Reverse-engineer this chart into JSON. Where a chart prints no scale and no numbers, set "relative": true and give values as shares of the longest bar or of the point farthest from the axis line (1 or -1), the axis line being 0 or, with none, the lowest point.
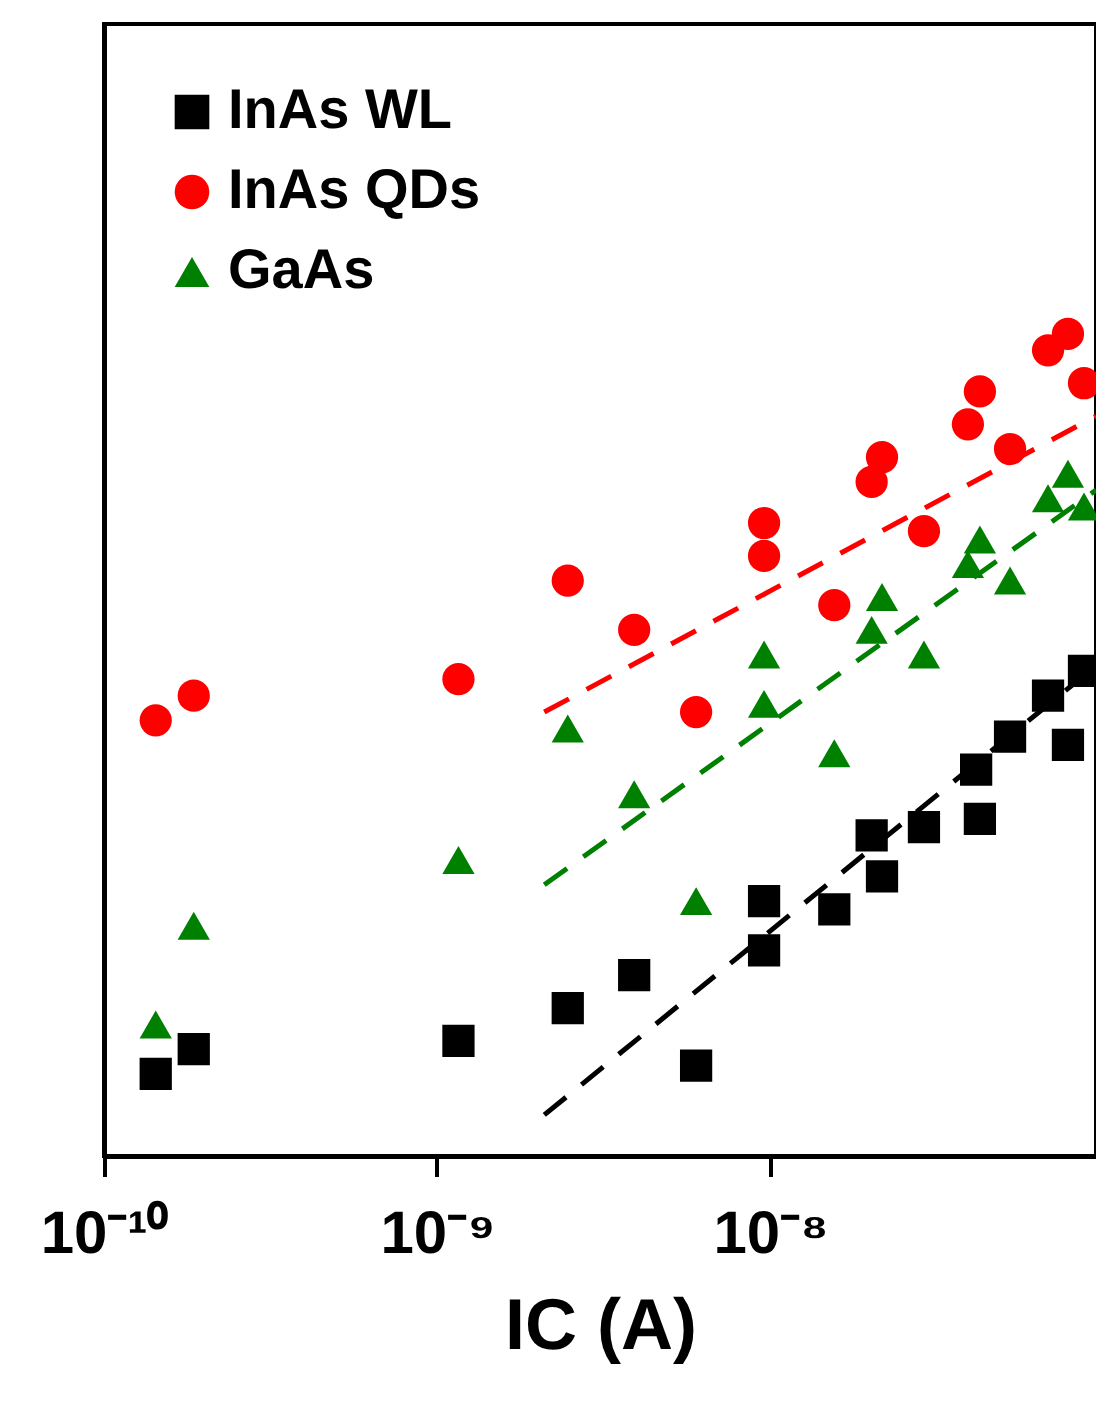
{
  "chart_data": {
    "type": "scatter",
    "relative": true,
    "log": "x",
    "xlabel": "IC (A)",
    "xlim": [
      1e-10,
      9.53e-08
    ],
    "xticks": [
      {
        "value": 1e-10,
        "label": "10⁻¹⁰"
      },
      {
        "value": 1e-09,
        "label": "10⁻⁹"
      },
      {
        "value": 1e-08,
        "label": "10⁻⁸"
      }
    ],
    "tick_labels": "x",
    "grid": false,
    "legend": "top left",
    "series": [
      {
        "name": "InAs WL",
        "color": "#000000",
        "marker": "square",
        "x": [
          1.43e-10,
          1.86e-10,
          1.16e-09,
          2.47e-09,
          3.91e-09,
          6e-09,
          9.6e-09,
          9.6e-09,
          1.56e-08,
          2.17e-08,
          2.02e-08,
          2.9e-08,
          4.16e-08,
          4.27e-08,
          5.26e-08,
          6.84e-08,
          7.85e-08,
          8.77e-08
        ],
        "values": [
          0.1,
          0.13,
          0.14,
          0.18,
          0.22,
          0.11,
          0.25,
          0.31,
          0.3,
          0.34,
          0.39,
          0.4,
          0.47,
          0.41,
          0.51,
          0.56,
          0.5,
          0.59
        ]
      },
      {
        "name": "InAs QDs",
        "color": "#ff0000",
        "marker": "circle",
        "x": [
          1.43e-10,
          1.86e-10,
          1.16e-09,
          2.47e-09,
          3.91e-09,
          6e-09,
          9.6e-09,
          9.6e-09,
          1.56e-08,
          2.02e-08,
          2.17e-08,
          2.9e-08,
          3.93e-08,
          4.27e-08,
          5.26e-08,
          6.84e-08,
          7.85e-08,
          8.77e-08
        ],
        "values": [
          0.53,
          0.56,
          0.58,
          0.7,
          0.64,
          0.54,
          0.77,
          0.73,
          0.67,
          0.82,
          0.85,
          0.76,
          0.89,
          0.93,
          0.86,
          0.98,
          1,
          0.94
        ]
      },
      {
        "name": "GaAs",
        "color": "#008000",
        "marker": "triangle",
        "x": [
          1.43e-10,
          1.86e-10,
          1.16e-09,
          2.47e-09,
          3.91e-09,
          6e-09,
          9.6e-09,
          9.6e-09,
          1.56e-08,
          2.02e-08,
          2.17e-08,
          2.9e-08,
          3.93e-08,
          4.27e-08,
          5.26e-08,
          6.84e-08,
          7.85e-08,
          8.77e-08
        ],
        "values": [
          0.16,
          0.28,
          0.36,
          0.52,
          0.44,
          0.31,
          0.61,
          0.55,
          0.49,
          0.64,
          0.68,
          0.61,
          0.72,
          0.75,
          0.7,
          0.8,
          0.83,
          0.79
        ]
      },
      {
        "type": "line",
        "line_style": "dashed",
        "marker": "none",
        "color": "#000000",
        "x": [
          2.1e-09,
          8.5e-08
        ],
        "values": [
          0.05,
          0.58
        ]
      },
      {
        "type": "line",
        "line_style": "dashed",
        "marker": "none",
        "color": "#ff0000",
        "x": [
          2.1e-09,
          9.53e-08
        ],
        "values": [
          0.54,
          0.9
        ]
      },
      {
        "type": "line",
        "line_style": "dashed",
        "marker": "none",
        "color": "#008000",
        "x": [
          2.1e-09,
          9.53e-08
        ],
        "values": [
          0.33,
          0.81
        ]
      }
    ]
  }
}
